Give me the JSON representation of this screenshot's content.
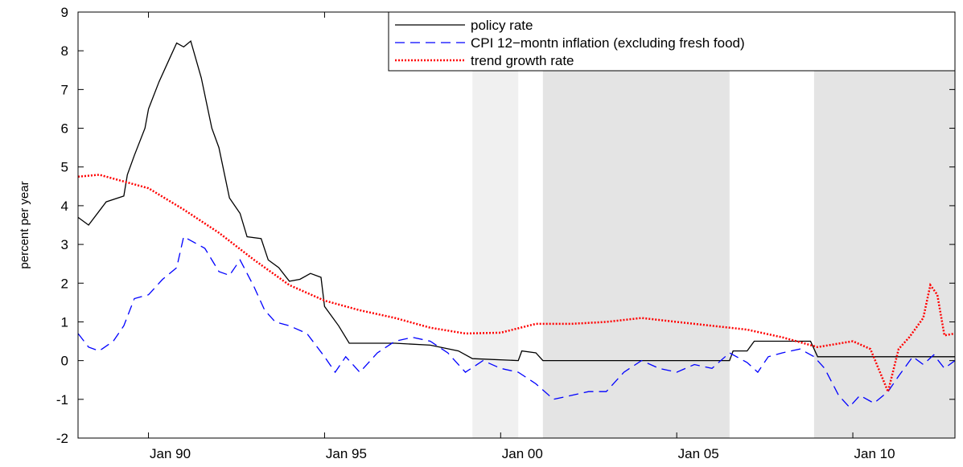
{
  "chart_data": {
    "type": "line",
    "ylabel": "percent per year",
    "xlim": [
      1988.0,
      2012.9
    ],
    "ylim": [
      -2,
      9
    ],
    "xticks": [
      {
        "value": 1990,
        "label": "Jan 90"
      },
      {
        "value": 1995,
        "label": "Jan 95"
      },
      {
        "value": 2000,
        "label": "Jan 00"
      },
      {
        "value": 2005,
        "label": "Jan 05"
      },
      {
        "value": 2010,
        "label": "Jan 10"
      }
    ],
    "yticks": [
      -2,
      -1,
      0,
      1,
      2,
      3,
      4,
      5,
      6,
      7,
      8,
      9
    ],
    "legend": "upper right",
    "shaded_regions": [
      {
        "start": 1999.2,
        "end": 2000.5,
        "color": "#f0f0f0"
      },
      {
        "start": 2001.2,
        "end": 2006.5,
        "color": "#e4e4e4"
      },
      {
        "start": 2008.9,
        "end": 2012.9,
        "color": "#e4e4e4"
      }
    ],
    "series": [
      {
        "name": "policy rate",
        "color": "#000000",
        "style": "solid",
        "x": [
          1988.0,
          1988.3,
          1988.8,
          1989.3,
          1989.4,
          1989.6,
          1989.9,
          1990.0,
          1990.3,
          1990.6,
          1990.8,
          1991.0,
          1991.2,
          1991.5,
          1991.8,
          1992.0,
          1992.3,
          1992.6,
          1992.8,
          1993.2,
          1993.4,
          1993.7,
          1994.0,
          1994.3,
          1994.6,
          1994.9,
          1995.0,
          1995.4,
          1995.7,
          1997.0,
          1998.0,
          1998.8,
          1999.2,
          2000.5,
          2000.6,
          2001.0,
          2001.2,
          2006.5,
          2006.6,
          2007.0,
          2007.2,
          2008.8,
          2008.9,
          2009.0,
          2012.9
        ],
        "values": [
          3.7,
          3.5,
          4.1,
          4.25,
          4.8,
          5.3,
          6.0,
          6.5,
          7.2,
          7.8,
          8.2,
          8.1,
          8.25,
          7.3,
          6.0,
          5.5,
          4.2,
          3.8,
          3.2,
          3.15,
          2.6,
          2.4,
          2.05,
          2.1,
          2.25,
          2.15,
          1.4,
          0.9,
          0.45,
          0.45,
          0.4,
          0.25,
          0.05,
          0.0,
          0.25,
          0.2,
          0.0,
          0.0,
          0.25,
          0.25,
          0.5,
          0.5,
          0.3,
          0.1,
          0.1
        ]
      },
      {
        "name": "CPI 12−montn inflation (excluding fresh food)",
        "color": "#0000ff",
        "style": "dashed",
        "x": [
          1988.0,
          1988.3,
          1988.6,
          1989.0,
          1989.3,
          1989.6,
          1990.0,
          1990.4,
          1990.8,
          1991.0,
          1991.3,
          1991.6,
          1992.0,
          1992.3,
          1992.6,
          1993.0,
          1993.3,
          1993.6,
          1994.0,
          1994.5,
          1995.0,
          1995.3,
          1995.6,
          1996.0,
          1996.5,
          1997.0,
          1997.5,
          1998.0,
          1998.5,
          1999.0,
          1999.5,
          2000.0,
          2000.5,
          2001.0,
          2001.5,
          2002.0,
          2002.5,
          2003.0,
          2003.5,
          2004.0,
          2004.5,
          2005.0,
          2005.5,
          2006.0,
          2006.5,
          2007.0,
          2007.3,
          2007.6,
          2008.0,
          2008.5,
          2008.9,
          2009.2,
          2009.6,
          2009.9,
          2010.2,
          2010.6,
          2011.0,
          2011.3,
          2011.7,
          2012.0,
          2012.3,
          2012.6,
          2012.9
        ],
        "values": [
          0.7,
          0.35,
          0.25,
          0.5,
          0.9,
          1.6,
          1.7,
          2.1,
          2.4,
          3.2,
          3.05,
          2.9,
          2.3,
          2.2,
          2.6,
          1.9,
          1.3,
          1.0,
          0.9,
          0.7,
          0.1,
          -0.3,
          0.1,
          -0.3,
          0.2,
          0.5,
          0.6,
          0.5,
          0.2,
          -0.3,
          0.0,
          -0.2,
          -0.3,
          -0.6,
          -1.0,
          -0.9,
          -0.8,
          -0.8,
          -0.3,
          0.0,
          -0.2,
          -0.3,
          -0.1,
          -0.2,
          0.2,
          -0.05,
          -0.3,
          0.1,
          0.2,
          0.3,
          0.1,
          -0.2,
          -0.9,
          -1.2,
          -0.9,
          -1.1,
          -0.8,
          -0.4,
          0.1,
          -0.1,
          0.15,
          -0.2,
          0.0
        ]
      },
      {
        "name": "trend growth rate",
        "color": "#ff0000",
        "style": "dotted",
        "x": [
          1988.0,
          1988.6,
          1989.0,
          1990.0,
          1991.0,
          1992.0,
          1993.0,
          1994.0,
          1995.0,
          1996.0,
          1997.0,
          1998.0,
          1999.0,
          2000.0,
          2001.0,
          2002.0,
          2003.0,
          2004.0,
          2005.0,
          2006.0,
          2007.0,
          2008.0,
          2009.0,
          2010.0,
          2010.5,
          2011.0,
          2011.3,
          2011.6,
          2012.0,
          2012.2,
          2012.4,
          2012.6,
          2012.9
        ],
        "values": [
          4.75,
          4.8,
          4.7,
          4.45,
          3.9,
          3.3,
          2.6,
          1.95,
          1.55,
          1.3,
          1.1,
          0.85,
          0.7,
          0.72,
          0.95,
          0.95,
          1.0,
          1.1,
          1.0,
          0.9,
          0.8,
          0.6,
          0.35,
          0.5,
          0.3,
          -0.8,
          0.3,
          0.6,
          1.1,
          1.95,
          1.7,
          0.65,
          0.7
        ]
      }
    ]
  }
}
